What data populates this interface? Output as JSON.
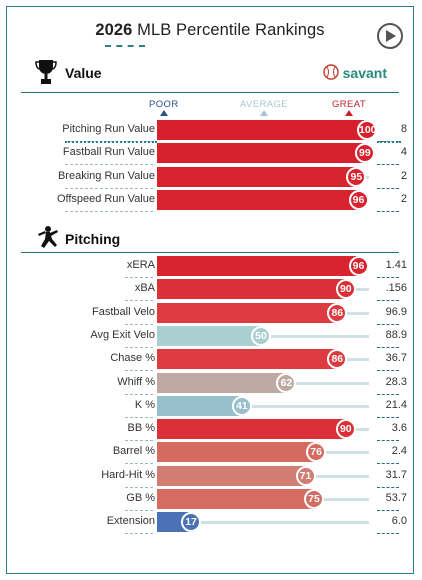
{
  "header": {
    "year": "2026",
    "title_rest": " MLB Percentile Rankings"
  },
  "sections": {
    "value": {
      "label": "Value",
      "brand": "savant"
    },
    "pitching": {
      "label": "Pitching"
    }
  },
  "scale": {
    "poor": "POOR",
    "average": "AVERAGE",
    "great": "GREAT"
  },
  "colors": {
    "teal": "#2a7f8a",
    "great_red": "#d22a35",
    "poor_blue": "#3b6fb6",
    "average_gray": "#b6b0a8"
  },
  "value_rows": [
    {
      "name": "Pitching Run Value",
      "percentile": 100,
      "value": "8",
      "color": "#d81f2c"
    },
    {
      "name": "Fastball Run Value",
      "percentile": 99,
      "value": "4",
      "color": "#d8212e"
    },
    {
      "name": "Breaking Run Value",
      "percentile": 95,
      "value": "2",
      "color": "#d9242f"
    },
    {
      "name": "Offspeed Run Value",
      "percentile": 96,
      "value": "2",
      "color": "#d9232e"
    }
  ],
  "pitching_rows": [
    {
      "name": "xERA",
      "percentile": 96,
      "value": "1.41",
      "color": "#d9232e"
    },
    {
      "name": "xBA",
      "percentile": 90,
      "value": ".156",
      "color": "#db3037"
    },
    {
      "name": "Fastball Velo",
      "percentile": 86,
      "value": "96.9",
      "color": "#dd3b40"
    },
    {
      "name": "Avg Exit Velo",
      "percentile": 50,
      "value": "88.9",
      "color": "#aacfd1"
    },
    {
      "name": "Chase %",
      "percentile": 86,
      "value": "36.7",
      "color": "#dd3b40"
    },
    {
      "name": "Whiff %",
      "percentile": 62,
      "value": "28.3",
      "color": "#bfaaa3"
    },
    {
      "name": "K %",
      "percentile": 41,
      "value": "21.4",
      "color": "#98bfcc"
    },
    {
      "name": "BB %",
      "percentile": 90,
      "value": "3.6",
      "color": "#db3037"
    },
    {
      "name": "Barrel %",
      "percentile": 76,
      "value": "2.4",
      "color": "#d46a60"
    },
    {
      "name": "Hard-Hit %",
      "percentile": 71,
      "value": "31.7",
      "color": "#d17d72"
    },
    {
      "name": "GB %",
      "percentile": 75,
      "value": "53.7",
      "color": "#d46c62"
    },
    {
      "name": "Extension",
      "percentile": 17,
      "value": "6.0",
      "color": "#4a72b4"
    }
  ]
}
